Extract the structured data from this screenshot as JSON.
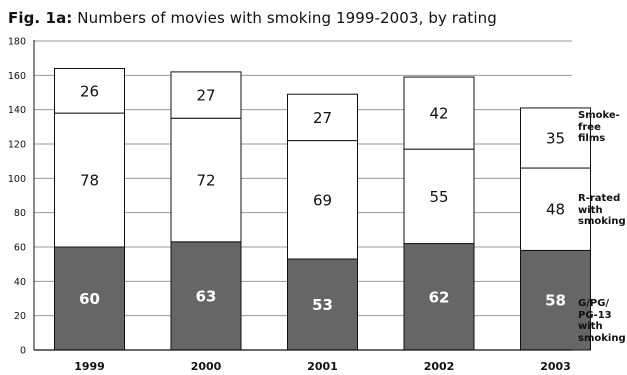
{
  "title": {
    "prefix": "Fig. 1a:",
    "text": "Numbers of movies with smoking 1999-2003, by rating"
  },
  "chart_data": {
    "type": "bar",
    "stacked": true,
    "categories": [
      "1999",
      "2000",
      "2001",
      "2002",
      "2003"
    ],
    "series": [
      {
        "name": "G/PG/PG-13 with smoking",
        "values": [
          60,
          63,
          53,
          62,
          58
        ],
        "color": "#666666",
        "label_color": "#ffffff"
      },
      {
        "name": "R-rated with smoking",
        "values": [
          78,
          72,
          69,
          55,
          48
        ],
        "color": "#ffffff",
        "label_color": "#111111"
      },
      {
        "name": "Smoke-free films",
        "values": [
          26,
          27,
          27,
          42,
          35
        ],
        "color": "#ffffff",
        "label_color": "#111111"
      }
    ],
    "ylim": [
      0,
      180
    ],
    "yticks": [
      0,
      20,
      40,
      60,
      80,
      100,
      120,
      140,
      160,
      180
    ],
    "grid": true,
    "legend_position": "right"
  },
  "legend": {
    "smoke_free": [
      "Smoke-",
      "free",
      "films"
    ],
    "r_rated": [
      "R-rated",
      "with",
      "smoking"
    ],
    "g_pg": [
      "G/PG/",
      "PG-13",
      "with",
      "smoking"
    ]
  }
}
